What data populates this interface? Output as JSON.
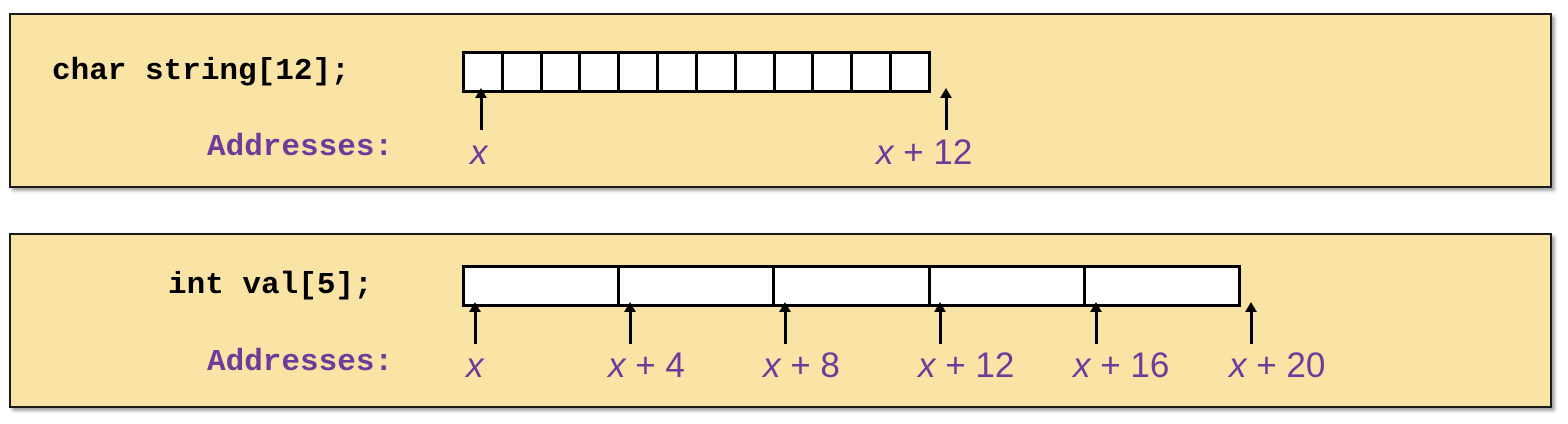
{
  "panel_char": {
    "declaration": "char string[12];",
    "addresses_label": "Addresses:",
    "cell_count": 12,
    "markers": [
      {
        "var": "x",
        "offset": ""
      },
      {
        "var": "x",
        "offset": " + 12"
      }
    ]
  },
  "panel_int": {
    "declaration": "int val[5];",
    "addresses_label": "Addresses:",
    "cell_count": 5,
    "markers": [
      {
        "var": "x",
        "offset": ""
      },
      {
        "var": "x",
        "offset": " + 4"
      },
      {
        "var": "x",
        "offset": " + 8"
      },
      {
        "var": "x",
        "offset": " + 12"
      },
      {
        "var": "x",
        "offset": " + 16"
      },
      {
        "var": "x",
        "offset": " + 20"
      }
    ]
  },
  "colors": {
    "panel_bg": "#f9e4a5",
    "address_text": "#6f3a9a",
    "cell_border": "#000000"
  }
}
